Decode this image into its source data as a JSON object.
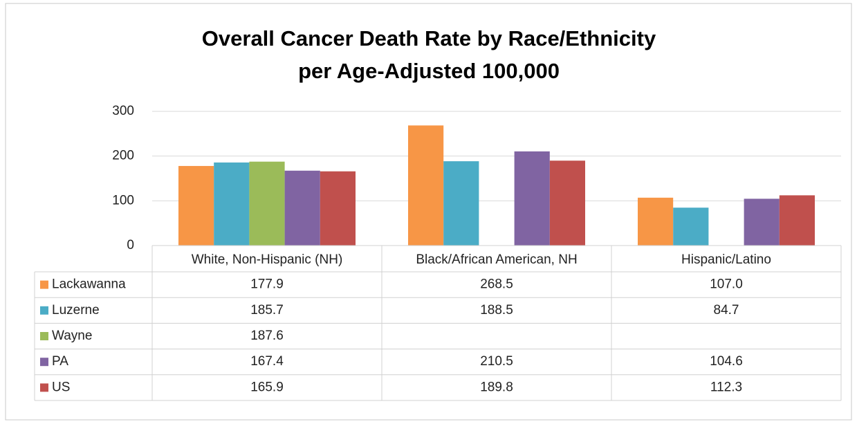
{
  "chart_data": {
    "type": "bar",
    "title": [
      "Overall Cancer Death Rate by Race/Ethnicity",
      "per Age-Adjusted 100,000"
    ],
    "categories": [
      "White, Non-Hispanic (NH)",
      "Black/African American, NH",
      "Hispanic/Latino"
    ],
    "series": [
      {
        "name": "Lackawanna",
        "color": "#f79646",
        "values": [
          177.9,
          268.5,
          107.0
        ],
        "value_labels": [
          "177.9",
          "268.5",
          "107.0"
        ]
      },
      {
        "name": "Luzerne",
        "color": "#4bacc6",
        "values": [
          185.7,
          188.5,
          84.7
        ],
        "value_labels": [
          "185.7",
          "188.5",
          "84.7"
        ]
      },
      {
        "name": "Wayne",
        "color": "#9bbb59",
        "values": [
          187.6,
          null,
          null
        ],
        "value_labels": [
          "187.6",
          null,
          null
        ]
      },
      {
        "name": "PA",
        "color": "#8064a2",
        "values": [
          167.4,
          210.5,
          104.6
        ],
        "value_labels": [
          "167.4",
          "210.5",
          "104.6"
        ]
      },
      {
        "name": "US",
        "color": "#c0504d",
        "values": [
          165.9,
          189.8,
          112.3
        ],
        "value_labels": [
          "165.9",
          "189.8",
          "112.3"
        ]
      }
    ],
    "ylim": [
      0,
      300
    ],
    "yticks": [
      0,
      100,
      200,
      300
    ],
    "grid": true
  }
}
